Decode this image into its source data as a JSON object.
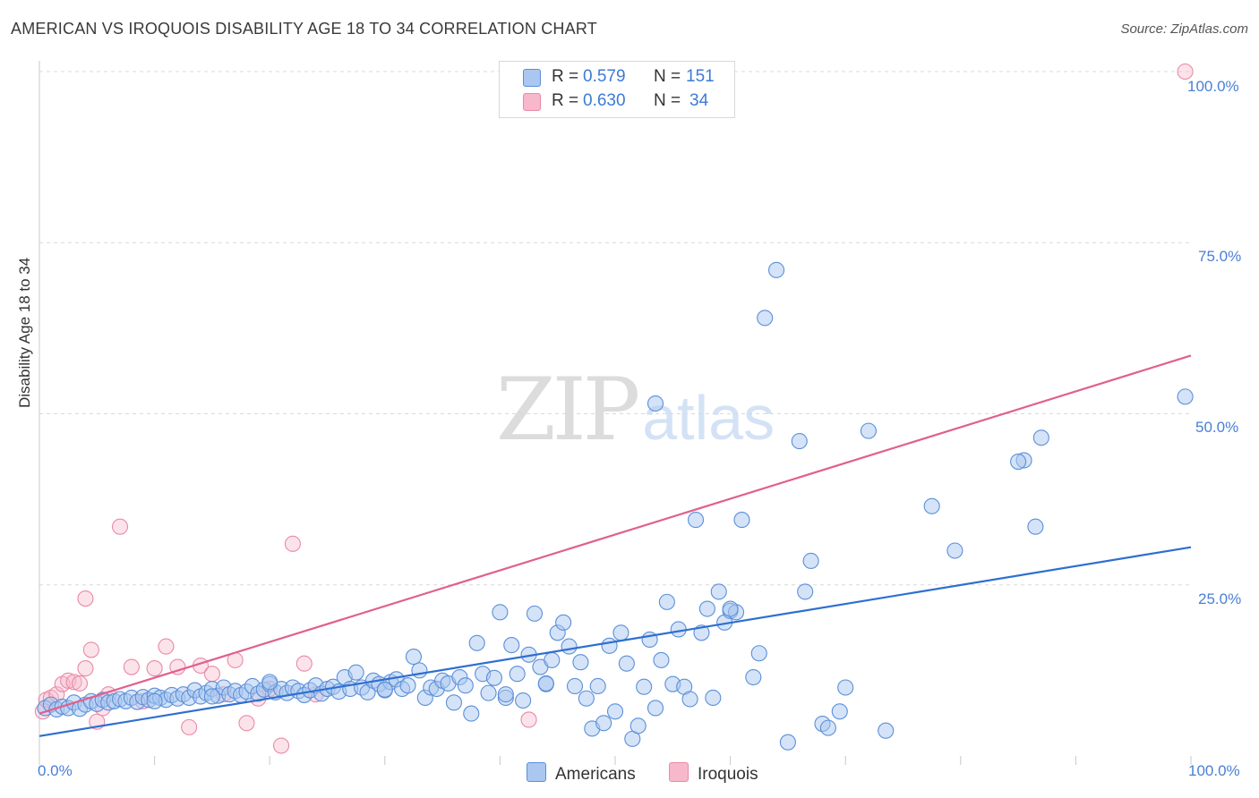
{
  "title": "AMERICAN VS IROQUOIS DISABILITY AGE 18 TO 34 CORRELATION CHART",
  "source": "Source: ZipAtlas.com",
  "watermark": {
    "zip": "ZIP",
    "atlas": "atlas"
  },
  "legend": {
    "r_label": "R =",
    "n_label": "N =",
    "americans": {
      "r": "0.579",
      "n": "151"
    },
    "iroquois": {
      "r": "0.630",
      "n": "34"
    }
  },
  "colors": {
    "americans_fill": "#a9c7f0",
    "americans_stroke": "#5b8fd9",
    "americans_line": "#2e6fd0",
    "iroquois_fill": "#f7b8cb",
    "iroquois_stroke": "#e88aa8",
    "iroquois_line": "#e0608e",
    "grid": "#d9d9d9",
    "tick_label": "#4a7fd4"
  },
  "chart_data": {
    "type": "scatter",
    "title": "AMERICAN VS IROQUOIS DISABILITY AGE 18 TO 34 CORRELATION CHART",
    "xlabel": "",
    "ylabel": "Disability Age 18 to 34",
    "xlim": [
      0,
      100
    ],
    "ylim": [
      0,
      100
    ],
    "x_tick_labels": [
      "0.0%",
      "100.0%"
    ],
    "y_tick_labels": [
      "25.0%",
      "50.0%",
      "75.0%",
      "100.0%"
    ],
    "y_ticks": [
      25,
      50,
      75,
      100
    ],
    "grid": true,
    "legend_position": "top-center and bottom",
    "series": [
      {
        "name": "Americans",
        "r": 0.579,
        "n": 151,
        "trend": {
          "x": [
            0,
            100
          ],
          "y": [
            2.9,
            30.5
          ]
        },
        "points": [
          [
            0.5,
            7.0
          ],
          [
            1.0,
            7.5
          ],
          [
            1.5,
            6.8
          ],
          [
            2.0,
            7.2
          ],
          [
            2.5,
            7.0
          ],
          [
            3.0,
            7.8
          ],
          [
            3.5,
            6.9
          ],
          [
            4.0,
            7.5
          ],
          [
            4.5,
            8.0
          ],
          [
            5.0,
            7.6
          ],
          [
            5.5,
            8.2
          ],
          [
            6.0,
            7.8
          ],
          [
            6.5,
            8.0
          ],
          [
            7.0,
            8.3
          ],
          [
            7.5,
            8.0
          ],
          [
            8.0,
            8.5
          ],
          [
            8.5,
            7.9
          ],
          [
            9.0,
            8.6
          ],
          [
            9.5,
            8.2
          ],
          [
            10.0,
            8.8
          ],
          [
            10.5,
            8.5
          ],
          [
            11.0,
            8.2
          ],
          [
            11.5,
            8.9
          ],
          [
            12.0,
            8.4
          ],
          [
            12.5,
            9.0
          ],
          [
            13.0,
            8.5
          ],
          [
            13.5,
            9.6
          ],
          [
            14.0,
            8.7
          ],
          [
            14.5,
            9.2
          ],
          [
            15.0,
            9.8
          ],
          [
            15.5,
            8.8
          ],
          [
            16.0,
            10.0
          ],
          [
            16.5,
            9.0
          ],
          [
            17.0,
            9.5
          ],
          [
            17.5,
            8.9
          ],
          [
            18.0,
            9.4
          ],
          [
            18.5,
            10.2
          ],
          [
            19.0,
            9.1
          ],
          [
            19.5,
            9.7
          ],
          [
            20.0,
            10.5
          ],
          [
            20.5,
            9.3
          ],
          [
            21.0,
            9.8
          ],
          [
            21.5,
            9.2
          ],
          [
            22.0,
            10.0
          ],
          [
            22.5,
            9.5
          ],
          [
            23.0,
            8.9
          ],
          [
            23.5,
            9.6
          ],
          [
            24.0,
            10.3
          ],
          [
            24.5,
            9.1
          ],
          [
            25.0,
            9.8
          ],
          [
            25.5,
            10.1
          ],
          [
            26.0,
            9.4
          ],
          [
            26.5,
            11.5
          ],
          [
            27.0,
            9.8
          ],
          [
            27.5,
            12.2
          ],
          [
            28.0,
            10.0
          ],
          [
            28.5,
            9.3
          ],
          [
            29.0,
            11.0
          ],
          [
            29.5,
            10.5
          ],
          [
            30.0,
            9.6
          ],
          [
            30.5,
            10.8
          ],
          [
            31.0,
            11.2
          ],
          [
            31.5,
            9.8
          ],
          [
            32.0,
            10.3
          ],
          [
            32.5,
            14.5
          ],
          [
            33.0,
            12.5
          ],
          [
            33.5,
            8.5
          ],
          [
            34.0,
            10.0
          ],
          [
            34.5,
            9.8
          ],
          [
            35.0,
            11.0
          ],
          [
            35.5,
            10.6
          ],
          [
            36.0,
            7.8
          ],
          [
            36.5,
            11.5
          ],
          [
            37.0,
            10.3
          ],
          [
            37.5,
            6.2
          ],
          [
            38.0,
            16.5
          ],
          [
            38.5,
            12.0
          ],
          [
            39.0,
            9.2
          ],
          [
            39.5,
            11.4
          ],
          [
            40.0,
            21.0
          ],
          [
            40.5,
            8.5
          ],
          [
            41.0,
            16.2
          ],
          [
            41.5,
            12.0
          ],
          [
            42.0,
            8.1
          ],
          [
            42.5,
            14.8
          ],
          [
            43.0,
            20.8
          ],
          [
            43.5,
            13.0
          ],
          [
            44.0,
            10.5
          ],
          [
            44.5,
            14.0
          ],
          [
            45.0,
            18.0
          ],
          [
            45.5,
            19.5
          ],
          [
            46.0,
            16.0
          ],
          [
            46.5,
            10.2
          ],
          [
            47.0,
            13.7
          ],
          [
            47.5,
            8.4
          ],
          [
            48.0,
            4.0
          ],
          [
            48.5,
            10.2
          ],
          [
            49.0,
            4.8
          ],
          [
            49.5,
            16.1
          ],
          [
            50.0,
            6.5
          ],
          [
            50.5,
            18.0
          ],
          [
            51.0,
            13.5
          ],
          [
            51.5,
            2.5
          ],
          [
            52.0,
            4.4
          ],
          [
            52.5,
            10.1
          ],
          [
            53.0,
            17.0
          ],
          [
            53.5,
            7.0
          ],
          [
            54.0,
            14.0
          ],
          [
            54.5,
            22.5
          ],
          [
            55.0,
            10.5
          ],
          [
            55.5,
            18.5
          ],
          [
            56.0,
            10.1
          ],
          [
            56.5,
            8.3
          ],
          [
            57.0,
            34.5
          ],
          [
            57.5,
            18.0
          ],
          [
            58.0,
            21.5
          ],
          [
            58.5,
            8.5
          ],
          [
            59.0,
            24.0
          ],
          [
            59.5,
            19.5
          ],
          [
            60.0,
            21.2
          ],
          [
            60.5,
            21.0
          ],
          [
            61.0,
            34.5
          ],
          [
            62.0,
            11.5
          ],
          [
            62.5,
            15.0
          ],
          [
            64.0,
            71.0
          ],
          [
            65.0,
            2.0
          ],
          [
            66.0,
            46.0
          ],
          [
            66.5,
            24.0
          ],
          [
            67.0,
            28.5
          ],
          [
            68.0,
            4.7
          ],
          [
            68.5,
            4.1
          ],
          [
            69.5,
            6.5
          ],
          [
            70.0,
            10.0
          ],
          [
            72.0,
            47.5
          ],
          [
            73.5,
            3.7
          ],
          [
            77.5,
            36.5
          ],
          [
            79.5,
            30.0
          ],
          [
            85.5,
            43.2
          ],
          [
            86.5,
            33.5
          ],
          [
            87.0,
            46.5
          ],
          [
            99.5,
            52.5
          ],
          [
            53.5,
            51.5
          ],
          [
            63.0,
            64.0
          ],
          [
            60.0,
            21.5
          ],
          [
            40.5,
            9.0
          ],
          [
            20.0,
            10.8
          ],
          [
            15.0,
            8.7
          ],
          [
            10.0,
            8.0
          ],
          [
            30.0,
            9.7
          ],
          [
            44.0,
            10.6
          ],
          [
            85.0,
            43.0
          ]
        ]
      },
      {
        "name": "Iroquois",
        "r": 0.63,
        "n": 34,
        "trend": {
          "x": [
            0,
            100
          ],
          "y": [
            6.2,
            58.5
          ]
        },
        "points": [
          [
            0.3,
            6.5
          ],
          [
            0.6,
            8.2
          ],
          [
            1.0,
            8.5
          ],
          [
            1.5,
            9.0
          ],
          [
            2.0,
            10.5
          ],
          [
            2.5,
            11.0
          ],
          [
            3.0,
            10.8
          ],
          [
            3.5,
            10.6
          ],
          [
            4.0,
            12.8
          ],
          [
            4.5,
            15.5
          ],
          [
            5.0,
            5.0
          ],
          [
            5.5,
            7.0
          ],
          [
            6.0,
            9.0
          ],
          [
            7.0,
            33.5
          ],
          [
            8.0,
            13.0
          ],
          [
            9.0,
            8.0
          ],
          [
            10.0,
            12.8
          ],
          [
            11.0,
            16.0
          ],
          [
            12.0,
            13.0
          ],
          [
            13.0,
            4.2
          ],
          [
            14.0,
            13.2
          ],
          [
            15.0,
            12.0
          ],
          [
            16.0,
            9.0
          ],
          [
            17.0,
            14.0
          ],
          [
            18.0,
            4.8
          ],
          [
            19.0,
            8.4
          ],
          [
            20.0,
            9.8
          ],
          [
            21.0,
            1.5
          ],
          [
            22.0,
            31.0
          ],
          [
            23.0,
            13.5
          ],
          [
            24.0,
            9.0
          ],
          [
            4.0,
            23.0
          ],
          [
            99.5,
            100.0
          ],
          [
            42.5,
            5.3
          ]
        ]
      }
    ]
  }
}
